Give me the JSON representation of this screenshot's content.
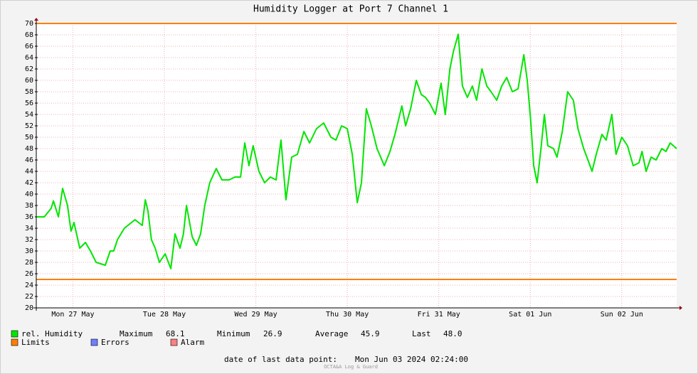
{
  "chart_data": {
    "type": "line",
    "title": "Humidity Logger at Port 7 Channel 1",
    "xlim": [
      0,
      168
    ],
    "xticks": [
      {
        "value": 9.6,
        "label": "Mon 27 May"
      },
      {
        "value": 33.6,
        "label": "Tue 28 May"
      },
      {
        "value": 57.6,
        "label": "Wed 29 May"
      },
      {
        "value": 81.6,
        "label": "Thu 30 May"
      },
      {
        "value": 105.6,
        "label": "Fri 31 May"
      },
      {
        "value": 129.6,
        "label": "Sat 01 Jun"
      },
      {
        "value": 153.6,
        "label": "Sun 02 Jun"
      }
    ],
    "ylim": [
      20,
      70
    ],
    "yticks": [
      20,
      22,
      24,
      26,
      28,
      30,
      32,
      34,
      36,
      38,
      40,
      42,
      44,
      46,
      48,
      50,
      52,
      54,
      56,
      58,
      60,
      62,
      64,
      66,
      68,
      70
    ],
    "grid": true,
    "series": [
      {
        "name": "rel. Humidity",
        "color": "#00e600",
        "x": [
          0,
          2.1,
          3.9,
          4.5,
          5.8,
          6.9,
          8.2,
          9.1,
          9.9,
          11.4,
          12.9,
          14.2,
          15.7,
          18.1,
          19.4,
          20.3,
          21.3,
          23.1,
          25.9,
          27.8,
          28.6,
          29.3,
          30.2,
          31.2,
          32.3,
          33.8,
          35.3,
          36.4,
          37.7,
          38.6,
          39.4,
          40.9,
          42.0,
          43.1,
          44.2,
          45.5,
          47.2,
          48.7,
          50.6,
          52.1,
          53.6,
          54.7,
          55.8,
          56.9,
          58.4,
          59.9,
          61.4,
          62.9,
          64.2,
          65.5,
          67.0,
          68.5,
          70.2,
          71.7,
          73.5,
          75.4,
          77.3,
          78.6,
          80.1,
          81.6,
          82.9,
          84.2,
          85.3,
          86.6,
          87.9,
          89.4,
          91.3,
          92.8,
          94.1,
          95.9,
          96.9,
          98.2,
          99.7,
          101.0,
          102.1,
          103.2,
          104.7,
          106.2,
          107.3,
          108.5,
          109.4,
          110.7,
          111.8,
          113.1,
          114.4,
          115.5,
          116.9,
          118.2,
          119.3,
          120.8,
          122.1,
          123.4,
          124.9,
          126.4,
          127.9,
          128.8,
          129.7,
          130.5,
          131.4,
          132.4,
          133.3,
          134.2,
          135.7,
          136.6,
          138.0,
          139.4,
          140.9,
          142.1,
          143.6,
          145.0,
          145.8,
          146.9,
          148.4,
          149.5,
          151.0,
          152.1,
          153.6,
          155.1,
          156.6,
          158.1,
          158.9,
          160.0,
          161.3,
          162.6,
          164.1,
          165.2,
          166.3,
          168.0
        ],
        "values": [
          36,
          36,
          37.5,
          38.8,
          36,
          41,
          38,
          33.5,
          35,
          30.5,
          31.5,
          30,
          28,
          27.5,
          30,
          30,
          32,
          34,
          35.5,
          34.5,
          39,
          37,
          32,
          30.5,
          28,
          29.5,
          26.9,
          33,
          30.5,
          33,
          38,
          32.5,
          31,
          33,
          38,
          42,
          44.5,
          42.5,
          42.5,
          43,
          43,
          49,
          45,
          48.5,
          44,
          42,
          43,
          42.5,
          49.5,
          39,
          46.5,
          47,
          51,
          49,
          51.5,
          52.5,
          50,
          49.5,
          52,
          51.5,
          47,
          38.5,
          42,
          55,
          52,
          48,
          45,
          47.5,
          50.5,
          55.5,
          52,
          55,
          60,
          57.5,
          57,
          56,
          54,
          59.5,
          54,
          62,
          65,
          68.1,
          59,
          57,
          59,
          56.5,
          62,
          59,
          58,
          56.5,
          59,
          60.5,
          58,
          58.5,
          64.5,
          60,
          53,
          45,
          42,
          48,
          54,
          48.5,
          48,
          46.5,
          51,
          58,
          56.5,
          51.5,
          48,
          45.5,
          44,
          47,
          50.5,
          49.5,
          54,
          47,
          50,
          48.5,
          45,
          45.5,
          47.5,
          44,
          46.5,
          46,
          48,
          47.5,
          49,
          48
        ]
      }
    ],
    "limits": {
      "name": "Limits",
      "color": "#ff7f00",
      "values": [
        25,
        70
      ]
    },
    "stats": [
      {
        "label": "Maximum",
        "value": 68.1
      },
      {
        "label": "Minimum",
        "value": 26.9
      },
      {
        "label": "Average",
        "value": 45.9
      },
      {
        "label": "Last",
        "value": 48,
        "value_label": "48.0"
      }
    ],
    "extra_legend": [
      {
        "name": "Errors",
        "color": "#6f7fff"
      },
      {
        "name": "Alarm",
        "color": "#ff8080"
      }
    ],
    "footer": {
      "label": "date of last data point:",
      "date": "Mon Jun 03 2024 02:24:00"
    },
    "watermark": "OCTA&A Log & Guard"
  }
}
